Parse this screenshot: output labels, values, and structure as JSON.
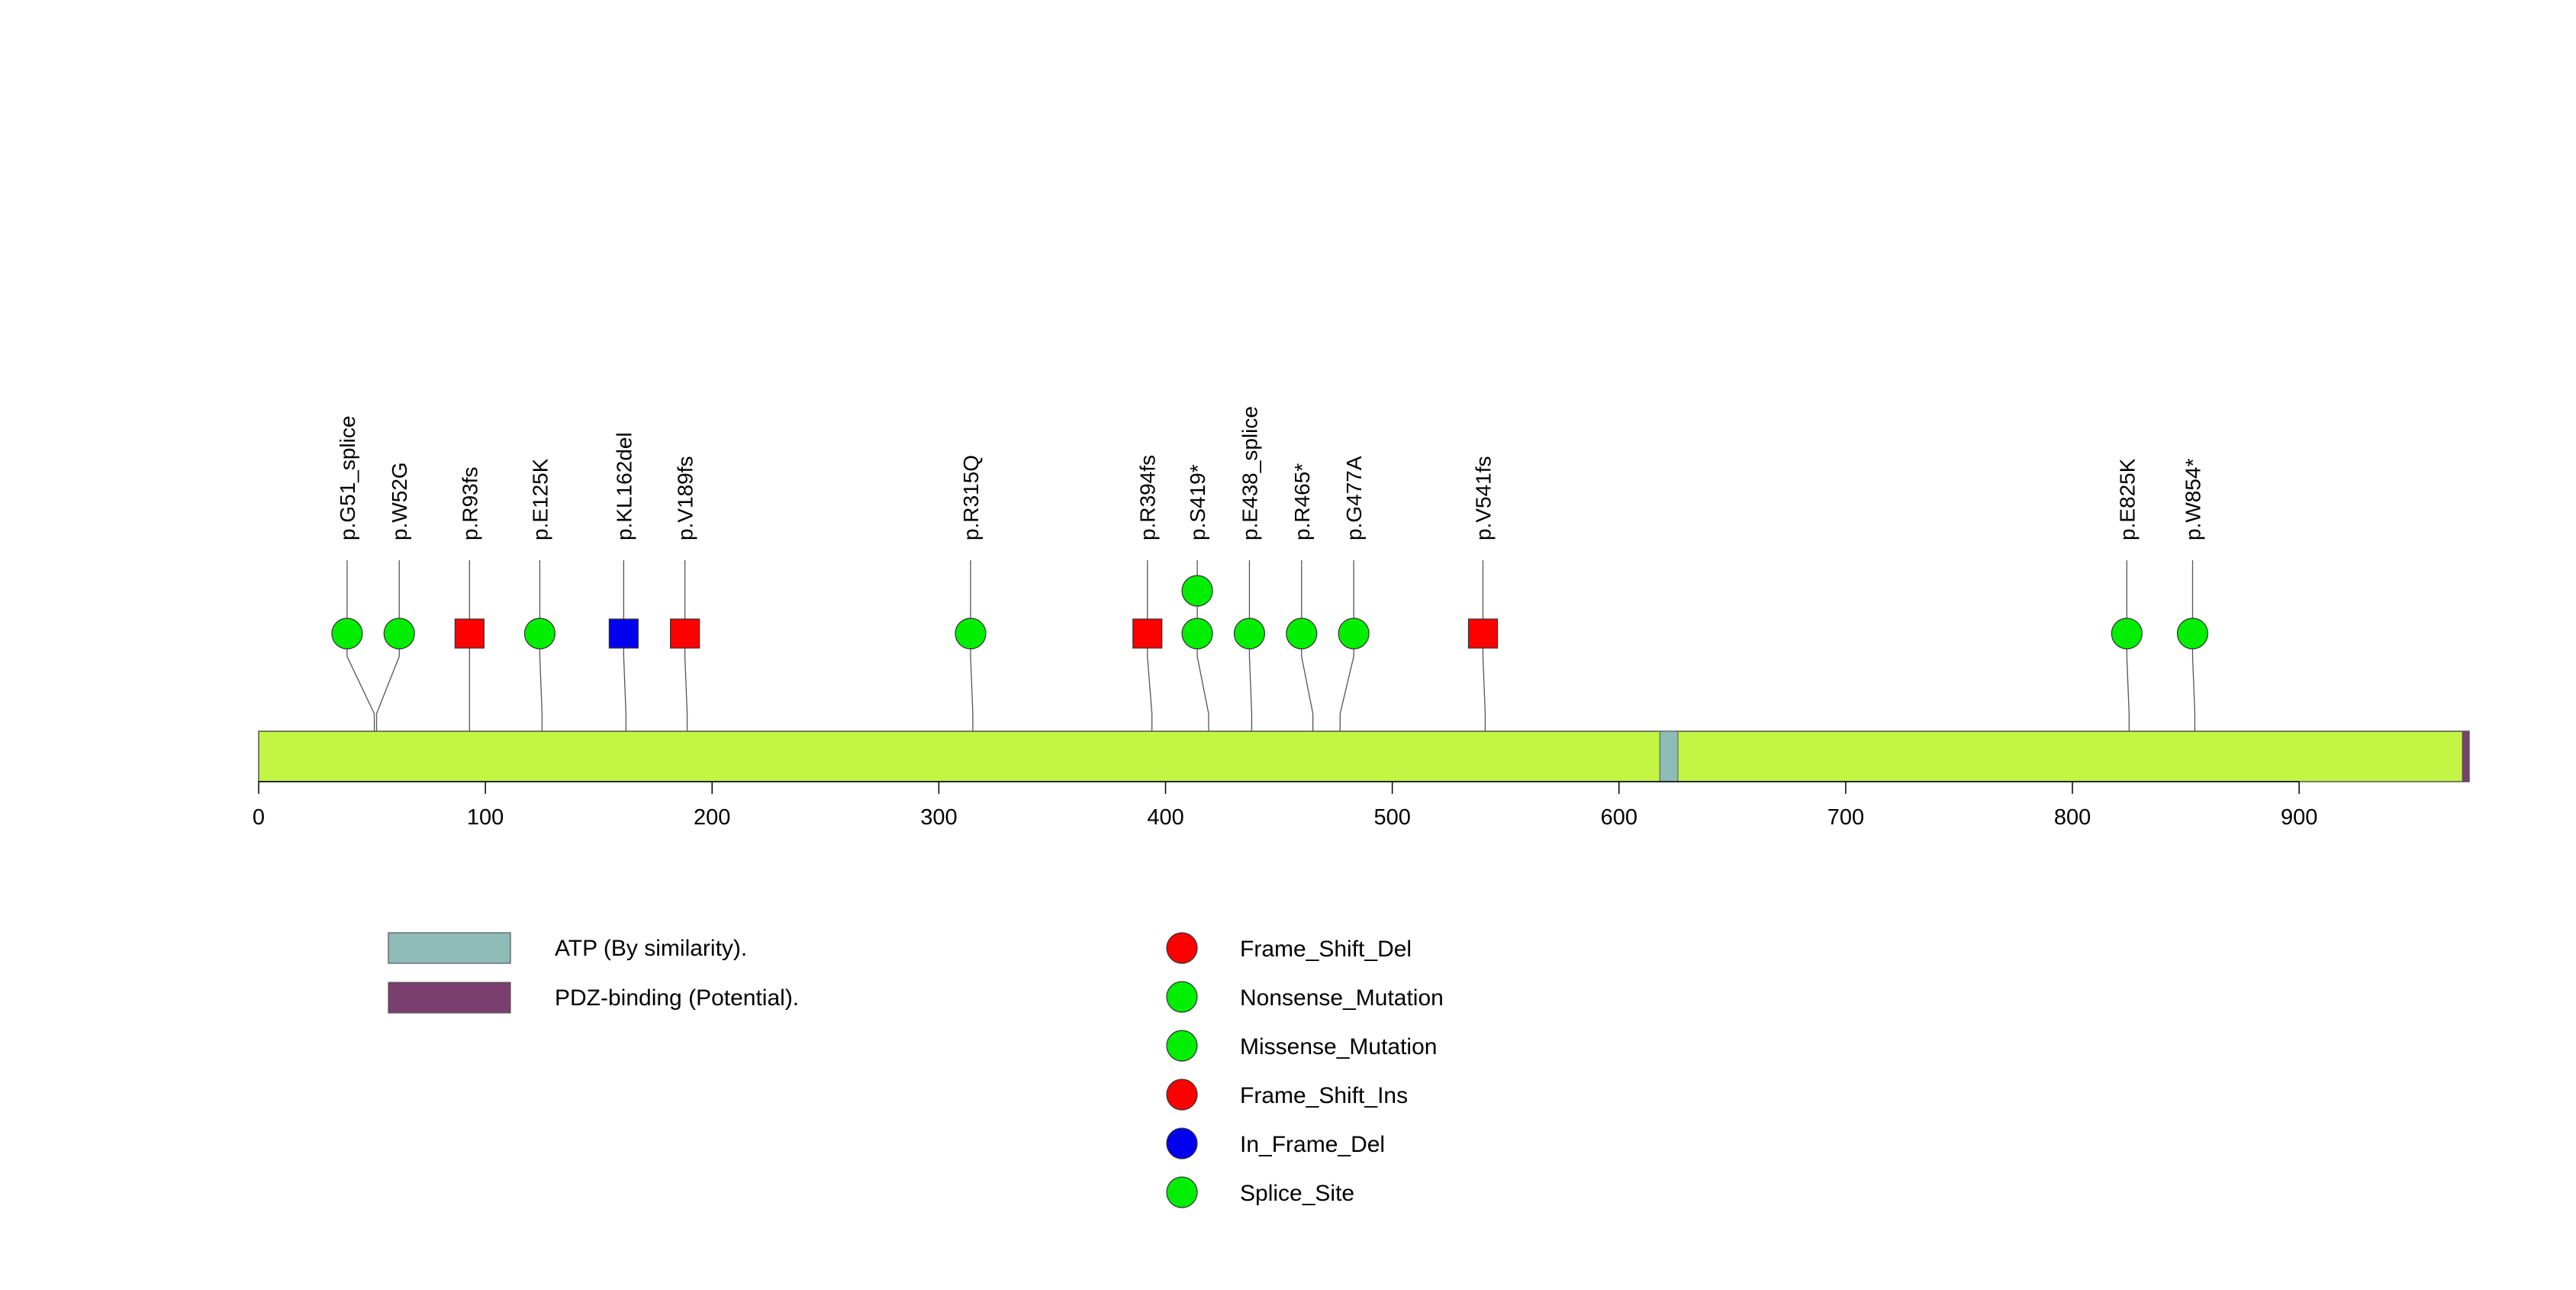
{
  "chart_data": {
    "type": "lollipop",
    "protein_length": 975,
    "xlim": [
      0,
      975
    ],
    "ticks": [
      0,
      100,
      200,
      300,
      400,
      500,
      600,
      700,
      800,
      900
    ],
    "colors": {
      "backbone": "#c3f545",
      "atp_domain": "#8fbcb7",
      "pdz_domain": "#7a3f6e",
      "frame_shift_del": "#ff0000",
      "nonsense": "#00ee00",
      "missense": "#00ee00",
      "frame_shift_ins": "#ff0000",
      "in_frame_del": "#0000ee",
      "splice": "#00ee00"
    },
    "domains": [
      {
        "name": "ATP (By similarity).",
        "start": 618,
        "end": 626,
        "color": "#8fbcb7"
      },
      {
        "name": "PDZ-binding (Potential).",
        "start": 972,
        "end": 975,
        "color": "#7a3f6e"
      }
    ],
    "mutations": [
      {
        "label": "p.G51_splice",
        "pos": 51,
        "display": 39,
        "shape": "circle",
        "type": "Splice_Site",
        "count": 1
      },
      {
        "label": "p.W52G",
        "pos": 52,
        "display": 62,
        "shape": "circle",
        "type": "Missense_Mutation",
        "count": 1
      },
      {
        "label": "p.R93fs",
        "pos": 93,
        "display": 93,
        "shape": "square",
        "type": "Frame_Shift_Del",
        "count": 1
      },
      {
        "label": "p.E125K",
        "pos": 125,
        "display": 124,
        "shape": "circle",
        "type": "Missense_Mutation",
        "count": 1
      },
      {
        "label": "p.KL162del",
        "pos": 162,
        "display": 161,
        "shape": "square",
        "type": "In_Frame_Del",
        "count": 1
      },
      {
        "label": "p.V189fs",
        "pos": 189,
        "display": 188,
        "shape": "square",
        "type": "Frame_Shift_Del",
        "count": 1
      },
      {
        "label": "p.R315Q",
        "pos": 315,
        "display": 314,
        "shape": "circle",
        "type": "Missense_Mutation",
        "count": 1
      },
      {
        "label": "p.R394fs",
        "pos": 394,
        "display": 392,
        "shape": "square",
        "type": "Frame_Shift_Ins",
        "count": 1
      },
      {
        "label": "p.S419*",
        "pos": 419,
        "display": 414,
        "shape": "circle",
        "type": "Nonsense_Mutation",
        "count": 2
      },
      {
        "label": "p.E438_splice",
        "pos": 438,
        "display": 437,
        "shape": "circle",
        "type": "Splice_Site",
        "count": 1
      },
      {
        "label": "p.R465*",
        "pos": 465,
        "display": 460,
        "shape": "circle",
        "type": "Nonsense_Mutation",
        "count": 1
      },
      {
        "label": "p.G477A",
        "pos": 477,
        "display": 483,
        "shape": "circle",
        "type": "Missense_Mutation",
        "count": 1
      },
      {
        "label": "p.V541fs",
        "pos": 541,
        "display": 540,
        "shape": "square",
        "type": "Frame_Shift_Del",
        "count": 1
      },
      {
        "label": "p.E825K",
        "pos": 825,
        "display": 824,
        "shape": "circle",
        "type": "Missense_Mutation",
        "count": 1
      },
      {
        "label": "p.W854*",
        "pos": 854,
        "display": 853,
        "shape": "circle",
        "type": "Nonsense_Mutation",
        "count": 1
      }
    ]
  },
  "domain_legend": [
    {
      "label": "ATP (By similarity).",
      "color": "#8fbcb7"
    },
    {
      "label": "PDZ-binding (Potential).",
      "color": "#7a3f6e"
    }
  ],
  "mutation_legend": [
    {
      "label": "Frame_Shift_Del",
      "color": "#ff0000"
    },
    {
      "label": "Nonsense_Mutation",
      "color": "#00ee00"
    },
    {
      "label": "Missense_Mutation",
      "color": "#00ee00"
    },
    {
      "label": "Frame_Shift_Ins",
      "color": "#ff0000"
    },
    {
      "label": "In_Frame_Del",
      "color": "#0000ee"
    },
    {
      "label": "Splice_Site",
      "color": "#00ee00"
    }
  ]
}
